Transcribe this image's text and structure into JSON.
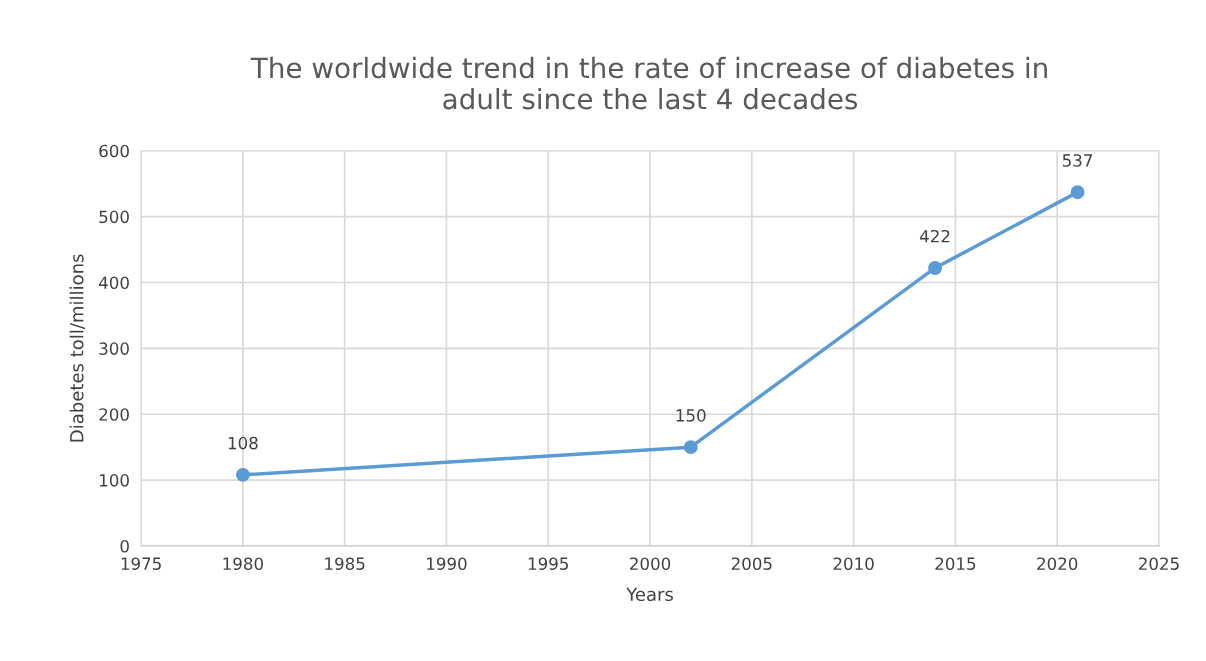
{
  "chart_data": {
    "type": "line",
    "title": "The worldwide trend in the rate of increase of diabetes in\nadult since the last 4 decades",
    "xlabel": "Years",
    "ylabel": "Diabetes toll/millions",
    "x": [
      1980,
      2002,
      2014,
      2021
    ],
    "series": [
      {
        "color": "#5b9bd5",
        "values": [
          108,
          150,
          422,
          537
        ]
      }
    ],
    "xlim": [
      1975,
      2025
    ],
    "xticks": [
      1975,
      1980,
      1985,
      1990,
      1995,
      2000,
      2005,
      2010,
      2015,
      2020,
      2025
    ],
    "ylim": [
      0,
      600
    ],
    "yticks": [
      0,
      100,
      200,
      300,
      400,
      500,
      600
    ],
    "grid": true,
    "marker": "circle",
    "line_style": "solid",
    "data_labels": true
  }
}
